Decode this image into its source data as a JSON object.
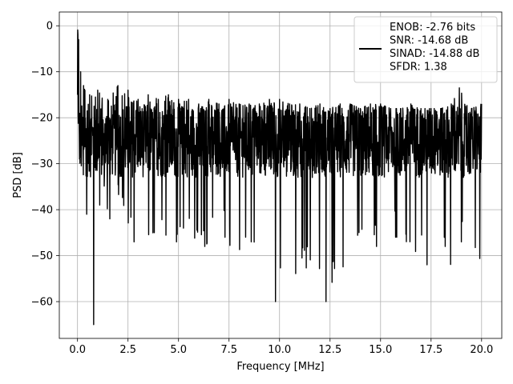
{
  "chart_data": {
    "type": "line",
    "title": "",
    "xlabel": "Frequency [MHz]",
    "ylabel": "PSD [dB]",
    "xlim": [
      -0.9,
      21.0
    ],
    "ylim": [
      -68,
      3
    ],
    "grid": true,
    "line_color": "#000000",
    "x_ticks": [
      0.0,
      2.5,
      5.0,
      7.5,
      10.0,
      12.5,
      15.0,
      17.5,
      20.0
    ],
    "x_tick_labels": [
      "0.0",
      "2.5",
      "5.0",
      "7.5",
      "10.0",
      "12.5",
      "15.0",
      "17.5",
      "20.0"
    ],
    "y_ticks": [
      0,
      -10,
      -20,
      -30,
      -40,
      -50,
      -60
    ],
    "y_tick_labels": [
      "0",
      "−10",
      "−20",
      "−30",
      "−40",
      "−50",
      "−60"
    ],
    "legend": {
      "position": "top-right",
      "entries": [
        "ENOB: -2.76 bits",
        "SNR: -14.68 dB",
        "SINAD: -14.88 dB",
        "SFDR: 1.38"
      ]
    },
    "series": [
      {
        "upper_envelope": {
          "x": [
            0.0,
            0.05,
            0.15,
            0.3,
            0.6,
            1.0,
            1.5,
            2.0,
            2.5,
            3.0,
            3.5,
            4.0,
            4.5,
            5.0,
            5.5,
            6.0,
            6.5,
            7.0,
            7.5,
            8.0,
            8.5,
            9.0,
            9.5,
            10.0,
            10.5,
            11.0,
            11.5,
            12.0,
            12.5,
            13.0,
            13.5,
            14.0,
            14.5,
            15.0,
            15.5,
            16.0,
            16.5,
            17.0,
            17.5,
            18.0,
            18.5,
            18.9,
            19.5,
            20.0
          ],
          "y": [
            0,
            -3,
            -10,
            -13,
            -15,
            -14,
            -16,
            -13,
            -14,
            -16,
            -15,
            -16,
            -15,
            -16,
            -16,
            -17,
            -16,
            -17,
            -16,
            -17,
            -17,
            -17,
            -16,
            -16,
            -17,
            -17,
            -18,
            -17,
            -18,
            -17,
            -17,
            -18,
            -17,
            -17,
            -18,
            -18,
            -17,
            -18,
            -18,
            -18,
            -17,
            -13.5,
            -18,
            -17
          ]
        },
        "lower_envelope": {
          "x": [
            0.0,
            0.1,
            0.3,
            0.45,
            0.8,
            1.1,
            1.6,
            2.0,
            2.8,
            3.0,
            3.8,
            4.9,
            6.3,
            7.3,
            8.0,
            8.6,
            9.0,
            9.8,
            10.0,
            11.5,
            12.3,
            13.5,
            14.8,
            15.8,
            17.3,
            18.2,
            18.5,
            19.0,
            20.0
          ],
          "y": [
            -15,
            -29,
            -37,
            -41,
            -65,
            -39,
            -42,
            -38,
            -47,
            -51,
            -45,
            -47,
            -48,
            -46,
            -53,
            -47,
            -50,
            -60,
            -56,
            -53,
            -60,
            -50,
            -48,
            -46,
            -52,
            -48,
            -58,
            -47,
            -56
          ]
        },
        "mean_level": -25
      }
    ]
  }
}
